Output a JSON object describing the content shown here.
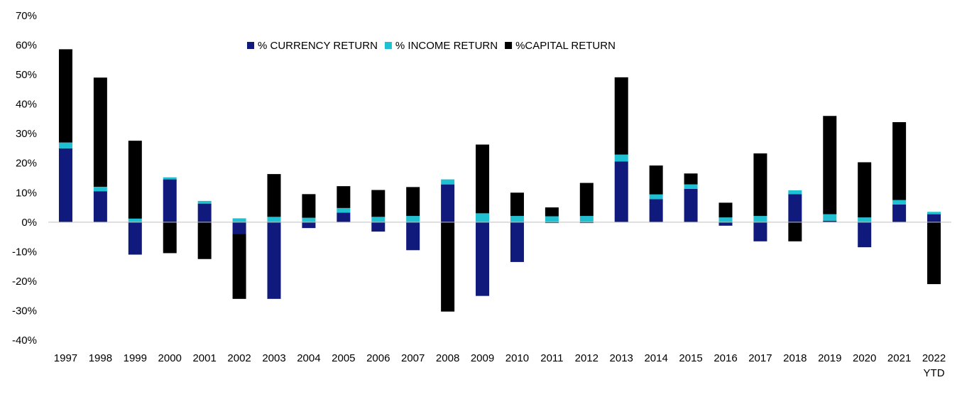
{
  "chart_data": {
    "type": "bar",
    "stacked": true,
    "title": "",
    "xlabel": "",
    "ylabel": "",
    "ylim": [
      -40,
      70
    ],
    "y_ticks": [
      "70%",
      "60%",
      "50%",
      "40%",
      "30%",
      "20%",
      "10%",
      "0%",
      "-10%",
      "-20%",
      "-30%",
      "-40%"
    ],
    "y_tick_values": [
      70,
      60,
      50,
      40,
      30,
      20,
      10,
      0,
      -10,
      -20,
      -30,
      -40
    ],
    "categories": [
      [
        "1997"
      ],
      [
        "1998"
      ],
      [
        "1999"
      ],
      [
        "2000"
      ],
      [
        "2001"
      ],
      [
        "2002"
      ],
      [
        "2003"
      ],
      [
        "2004"
      ],
      [
        "2005"
      ],
      [
        "2006"
      ],
      [
        "2007"
      ],
      [
        "2008"
      ],
      [
        "2009"
      ],
      [
        "2010"
      ],
      [
        "2011"
      ],
      [
        "2012"
      ],
      [
        "2013"
      ],
      [
        "2014"
      ],
      [
        "2015"
      ],
      [
        "2016"
      ],
      [
        "2017"
      ],
      [
        "2018"
      ],
      [
        "2019"
      ],
      [
        "2020"
      ],
      [
        "2021"
      ],
      [
        "2022",
        "YTD"
      ]
    ],
    "legend_position": "top-center",
    "series": [
      {
        "name": "% CURRENCY RETURN",
        "color": "#0f1a7c",
        "values": [
          25,
          10.5,
          -11,
          14.5,
          6.3,
          -4,
          -26,
          -2,
          3.2,
          -3.2,
          -9.5,
          12.8,
          -25,
          -13.5,
          -0.3,
          -0.3,
          20.6,
          7.8,
          11.3,
          -1.2,
          -6.5,
          9.5,
          0.5,
          -8.5,
          6,
          2.7
        ]
      },
      {
        "name": "% INCOME RETURN",
        "color": "#1ec0d2",
        "values": [
          2,
          1.5,
          1.2,
          0.7,
          0.9,
          1.3,
          1.8,
          1.5,
          1.6,
          1.8,
          2.1,
          1.7,
          3,
          2.1,
          2,
          2.1,
          2.3,
          1.6,
          1.5,
          1.6,
          2.1,
          1.3,
          2.2,
          1.6,
          1.5,
          0.8
        ]
      },
      {
        "name": "%CAPITAL RETURN",
        "color": "#000000",
        "values": [
          31.6,
          37,
          26.4,
          -10.5,
          -12.5,
          -22,
          14.5,
          8,
          7.4,
          9.1,
          9.8,
          -30.3,
          23.3,
          7.9,
          3,
          11.2,
          26.2,
          9.8,
          3.7,
          5,
          21.2,
          -6.5,
          33.3,
          18.7,
          26.4,
          -21
        ]
      }
    ]
  }
}
